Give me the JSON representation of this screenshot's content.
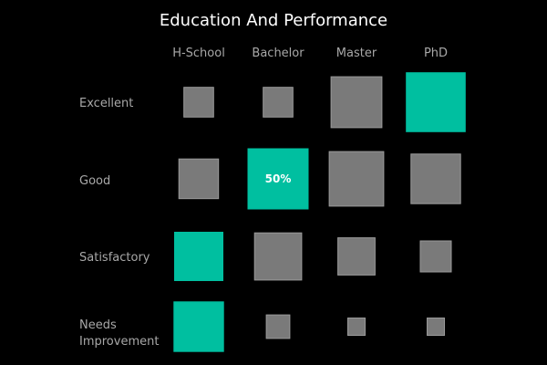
{
  "chart_data": {
    "type": "heatmap",
    "title": "Education And Performance",
    "columns": [
      "H-School",
      "Bachelor",
      "Master",
      "PhD"
    ],
    "rows": [
      [
        "Excellent"
      ],
      [
        "Good"
      ],
      [
        "Satisfactory"
      ],
      [
        "Needs",
        "Improvement"
      ]
    ],
    "row_names": [
      "Excellent",
      "Good",
      "Satisfactory",
      "Needs Improvement"
    ],
    "cell_size_relative": [
      [
        0.48,
        0.48,
        0.82,
        0.95
      ],
      [
        0.64,
        0.97,
        0.88,
        0.8
      ],
      [
        0.78,
        0.76,
        0.6,
        0.5
      ],
      [
        0.8,
        0.38,
        0.28,
        0.28
      ]
    ],
    "highlighted": [
      [
        false,
        false,
        false,
        true
      ],
      [
        false,
        true,
        false,
        false
      ],
      [
        true,
        false,
        false,
        false
      ],
      [
        true,
        false,
        false,
        false
      ]
    ],
    "cell_labels": [
      [
        "",
        "",
        "",
        ""
      ],
      [
        "",
        "50%",
        "",
        ""
      ],
      [
        "",
        "",
        "",
        ""
      ],
      [
        "",
        "",
        "",
        ""
      ]
    ],
    "colors": {
      "background": "#000000",
      "default_cell": "#7a7a7a",
      "highlight_cell": "#00bfa0",
      "cell_border": "#9a9a9a",
      "title": "#ffffff",
      "axis_text": "#a8a8a8"
    }
  }
}
